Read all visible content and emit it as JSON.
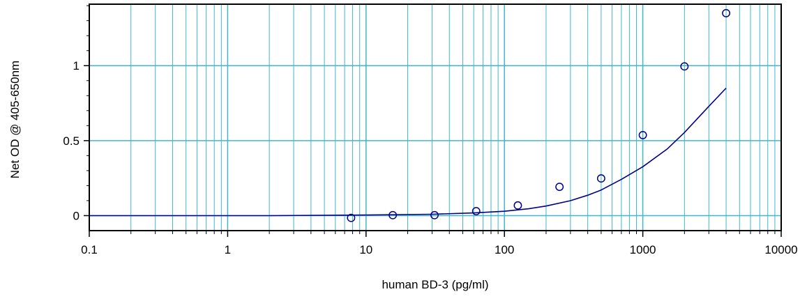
{
  "chart_data": {
    "type": "scatter",
    "xlabel": "human BD-3 (pg/ml)",
    "ylabel": "Net OD @ 405-650nm",
    "x_scale": "log",
    "xlim": [
      0.1,
      10000
    ],
    "ylim": [
      -0.1,
      1.41
    ],
    "x_ticks": [
      0.1,
      1,
      10,
      100,
      1000,
      10000
    ],
    "x_tick_labels": [
      "0.1",
      "1",
      "10",
      "100",
      "1000",
      "10000"
    ],
    "y_ticks": [
      0,
      0.5,
      1
    ],
    "y_tick_labels": [
      "0",
      "0.5",
      "1"
    ],
    "grid": true,
    "colors": {
      "series": "#00008b",
      "grid": "#3fb7cf",
      "axis": "#000000"
    },
    "series": [
      {
        "marker": "circle",
        "x": [
          7.8,
          15.6,
          31.25,
          62.5,
          125,
          250,
          500,
          1000,
          2000,
          4000
        ],
        "y": [
          -0.015,
          0.003,
          0.003,
          0.03,
          0.068,
          0.192,
          0.248,
          0.537,
          0.995,
          1.35
        ]
      }
    ],
    "fit_curve": {
      "x": [
        0.1,
        2,
        10,
        30,
        60,
        100,
        150,
        200,
        300,
        400,
        500,
        700,
        1000,
        1500,
        2000,
        3000,
        4000
      ],
      "y": [
        0.0,
        0.0,
        0.004,
        0.009,
        0.018,
        0.029,
        0.046,
        0.064,
        0.1,
        0.136,
        0.171,
        0.242,
        0.326,
        0.444,
        0.554,
        0.729,
        0.85
      ]
    }
  }
}
